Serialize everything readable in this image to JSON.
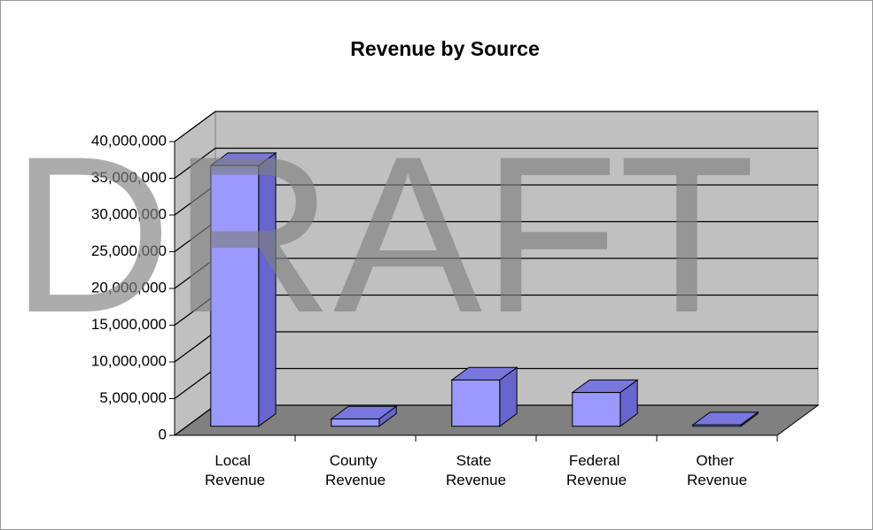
{
  "chart_data": {
    "type": "bar3d",
    "title": "Revenue by Source",
    "watermark": "DRAFT",
    "categories": [
      "Local Revenue",
      "County Revenue",
      "State Revenue",
      "Federal Revenue",
      "Other Revenue"
    ],
    "values": [
      35500000,
      1000000,
      6300000,
      4600000,
      200000
    ],
    "color": "#9999ff",
    "ylim": [
      0,
      40000000
    ],
    "yticks": [
      0,
      {
        "value": 5000000,
        "label": "5,000,000"
      },
      {
        "value": 10000000,
        "label": "10,000,000"
      },
      {
        "value": 15000000,
        "label": "15,000,000"
      },
      {
        "value": 20000000,
        "label": "20,000,000"
      },
      {
        "value": 25000000,
        "label": "25,000,000"
      },
      {
        "value": 30000000,
        "label": "30,000,000"
      },
      {
        "value": 35000000,
        "label": "35,000,000"
      },
      {
        "value": 40000000,
        "label": "40,000,000"
      }
    ],
    "grid": true
  }
}
